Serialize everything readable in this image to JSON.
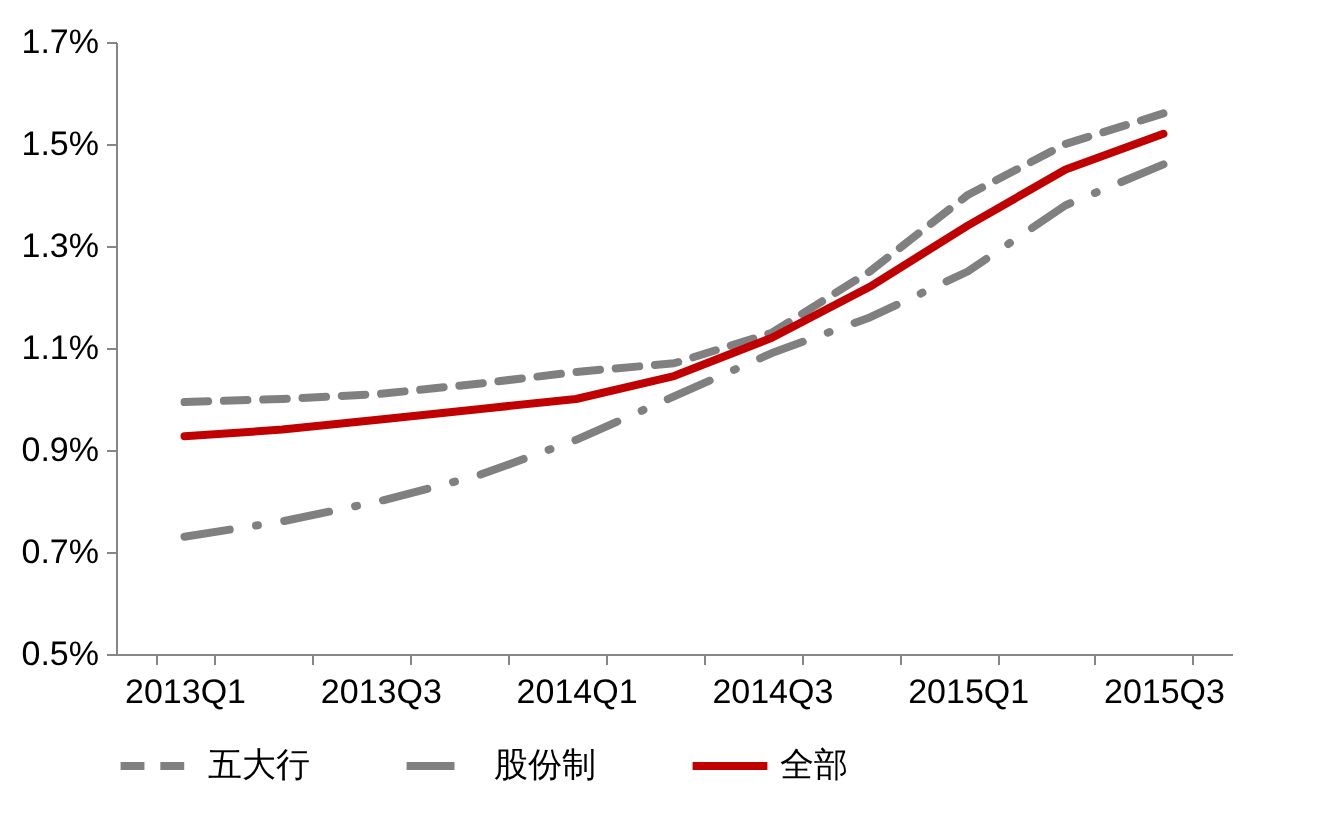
{
  "chart_data": {
    "type": "line",
    "categories": [
      "2013Q1",
      null,
      "2013Q3",
      null,
      "2014Q1",
      null,
      "2014Q3",
      null,
      "2015Q1",
      null,
      "2015Q3"
    ],
    "series": [
      {
        "name": "五大行",
        "color": "#808080",
        "line_style": "dashed",
        "values": [
          0.994,
          1.0,
          1.01,
          1.03,
          1.053,
          1.07,
          1.13,
          1.25,
          1.4,
          1.5,
          1.56
        ]
      },
      {
        "name": "股份制",
        "color": "#808080",
        "line_style": "dashdot",
        "values": [
          0.73,
          0.76,
          0.8,
          0.85,
          0.92,
          1.005,
          1.09,
          1.16,
          1.25,
          1.38,
          1.46
        ]
      },
      {
        "name": "全部",
        "color": "#c00000",
        "line_style": "solid",
        "values": [
          0.927,
          0.94,
          0.96,
          0.98,
          1.0,
          1.045,
          1.12,
          1.22,
          1.34,
          1.45,
          1.52
        ]
      }
    ],
    "ylim": [
      0.5,
      1.7
    ],
    "yticks": [
      {
        "value": 0.5,
        "label": "0.5%"
      },
      {
        "value": 0.7,
        "label": "0.7%"
      },
      {
        "value": 0.9,
        "label": "0.9%"
      },
      {
        "value": 1.1,
        "label": "1.1%"
      },
      {
        "value": 1.3,
        "label": "1.3%"
      },
      {
        "value": 1.5,
        "label": "1.5%"
      },
      {
        "value": 1.7,
        "label": "1.7%"
      }
    ],
    "grid": false,
    "legend": "bottom",
    "marker": "none"
  }
}
